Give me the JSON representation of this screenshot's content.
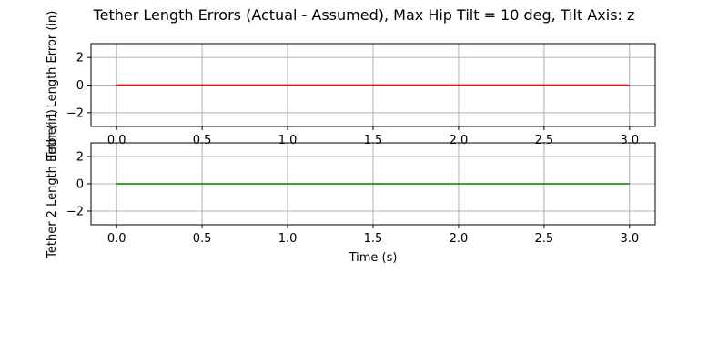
{
  "figure": {
    "title": "Tether Length Errors (Actual - Assumed), Max Hip Tilt = 10 deg, Tilt Axis: z"
  },
  "chart_data": [
    {
      "type": "line",
      "ylabel": "Tether 1 Length Error (in)",
      "xlabel": "",
      "xlim": [
        -0.15,
        3.15
      ],
      "ylim": [
        -3,
        3
      ],
      "xticks": [
        "0.0",
        "0.5",
        "1.0",
        "1.5",
        "2.0",
        "2.5",
        "3.0"
      ],
      "yticks": [
        "-2",
        "0",
        "2"
      ],
      "grid": true,
      "series": [
        {
          "color": "#ff0000",
          "x": [
            0.0,
            3.0
          ],
          "y": [
            0,
            0
          ]
        }
      ]
    },
    {
      "type": "line",
      "ylabel": "Tether 2 Length Error (in)",
      "xlabel": "Time (s)",
      "xlim": [
        -0.15,
        3.15
      ],
      "ylim": [
        -3,
        3
      ],
      "xticks": [
        "0.0",
        "0.5",
        "1.0",
        "1.5",
        "2.0",
        "2.5",
        "3.0"
      ],
      "yticks": [
        "-2",
        "0",
        "2"
      ],
      "grid": true,
      "series": [
        {
          "color": "#008000",
          "x": [
            0.0,
            3.0
          ],
          "y": [
            0,
            0
          ]
        }
      ]
    }
  ]
}
